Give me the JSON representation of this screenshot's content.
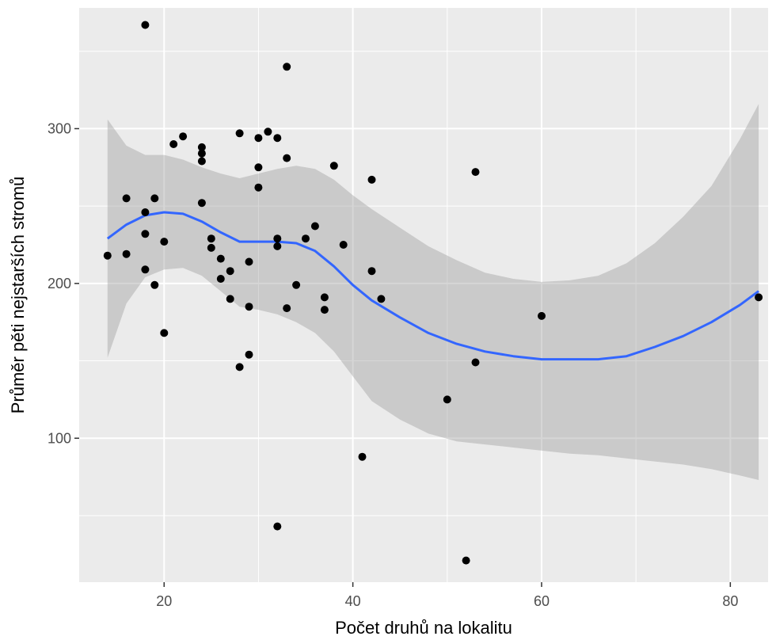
{
  "chart_data": {
    "type": "scatter",
    "xlabel": "Počet druhů na lokalitu",
    "ylabel": "Průměr pěti nejstarších stromů",
    "xlim": [
      11,
      84
    ],
    "ylim": [
      7,
      378
    ],
    "x_ticks": [
      20,
      40,
      60,
      80
    ],
    "x_tick_labels": [
      "20",
      "40",
      "60",
      "80"
    ],
    "y_ticks": [
      100,
      200,
      300
    ],
    "y_tick_labels": [
      "100",
      "200",
      "300"
    ],
    "grid": true,
    "colors": {
      "panel": "#ebebeb",
      "grid": "#ffffff",
      "points": "#000000",
      "smooth": "#3366ff",
      "ribbon": "#999999"
    },
    "points": [
      [
        18,
        367
      ],
      [
        33,
        340
      ],
      [
        31,
        298
      ],
      [
        28,
        297
      ],
      [
        30,
        294
      ],
      [
        32,
        294
      ],
      [
        22,
        295
      ],
      [
        21,
        290
      ],
      [
        24,
        288
      ],
      [
        24,
        284
      ],
      [
        24,
        279
      ],
      [
        33,
        281
      ],
      [
        38,
        276
      ],
      [
        30,
        275
      ],
      [
        53,
        272
      ],
      [
        42,
        267
      ],
      [
        30,
        262
      ],
      [
        16,
        255
      ],
      [
        19,
        255
      ],
      [
        24,
        252
      ],
      [
        18,
        246
      ],
      [
        36,
        237
      ],
      [
        18,
        232
      ],
      [
        35,
        229
      ],
      [
        25,
        229
      ],
      [
        32,
        229
      ],
      [
        20,
        227
      ],
      [
        32,
        224
      ],
      [
        39,
        225
      ],
      [
        25,
        223
      ],
      [
        14,
        218
      ],
      [
        16,
        219
      ],
      [
        26,
        216
      ],
      [
        29,
        214
      ],
      [
        18,
        209
      ],
      [
        27,
        208
      ],
      [
        42,
        208
      ],
      [
        26,
        203
      ],
      [
        19,
        199
      ],
      [
        34,
        199
      ],
      [
        27,
        190
      ],
      [
        37,
        191
      ],
      [
        43,
        190
      ],
      [
        83,
        191
      ],
      [
        29,
        185
      ],
      [
        33,
        184
      ],
      [
        37,
        183
      ],
      [
        60,
        179
      ],
      [
        20,
        168
      ],
      [
        29,
        154
      ],
      [
        53,
        149
      ],
      [
        28,
        146
      ],
      [
        50,
        125
      ],
      [
        41,
        88
      ],
      [
        32,
        43
      ],
      [
        52,
        21
      ]
    ],
    "smooth": {
      "x": [
        14,
        16,
        18,
        20,
        22,
        24,
        26,
        28,
        30,
        32,
        34,
        36,
        38,
        40,
        42,
        45,
        48,
        51,
        54,
        57,
        60,
        63,
        66,
        69,
        72,
        75,
        78,
        81,
        83
      ],
      "y": [
        229,
        238,
        244,
        246,
        245,
        240,
        233,
        227,
        227,
        227,
        226,
        221,
        211,
        199,
        189,
        178,
        168,
        161,
        156,
        153,
        151,
        151,
        151,
        153,
        159,
        166,
        175,
        186,
        195
      ],
      "lower": [
        152,
        187,
        204,
        209,
        210,
        205,
        195,
        185,
        183,
        180,
        175,
        168,
        156,
        140,
        124,
        112,
        103,
        98,
        96,
        94,
        92,
        90,
        89,
        87,
        85,
        83,
        80,
        76,
        73
      ],
      "upper": [
        306,
        289,
        283,
        283,
        280,
        275,
        271,
        268,
        271,
        274,
        276,
        274,
        267,
        257,
        248,
        236,
        224,
        215,
        207,
        203,
        201,
        202,
        205,
        213,
        226,
        243,
        263,
        293,
        316
      ]
    }
  }
}
